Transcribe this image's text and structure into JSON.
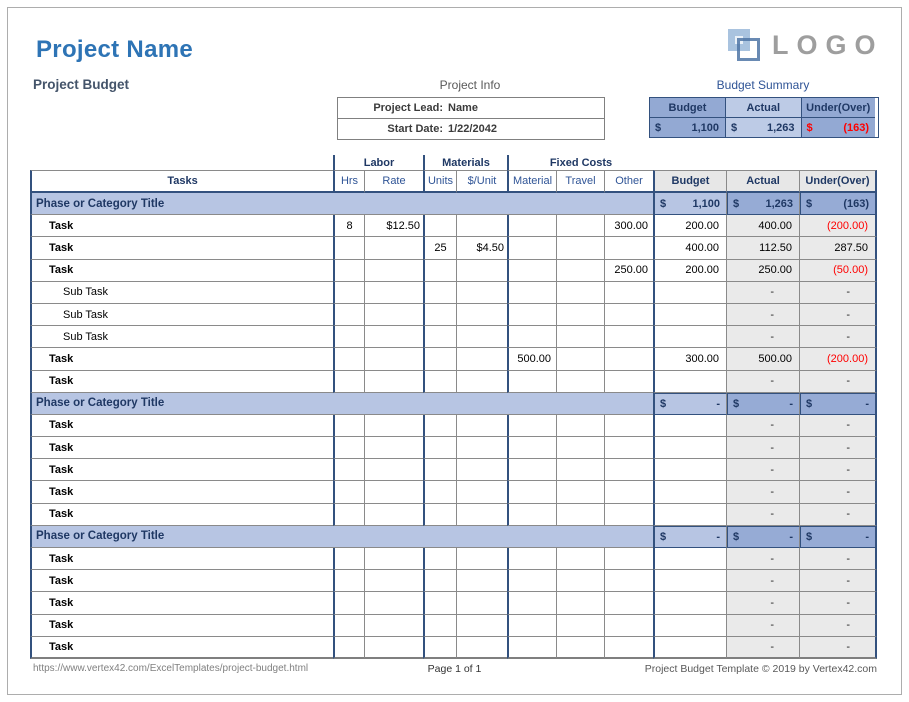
{
  "page_title": "Project Name",
  "doc_subtitle": "Project Budget",
  "logo": {
    "text": "LOGO"
  },
  "project_info": {
    "heading": "Project Info",
    "lead_label": "Project Lead:",
    "lead_value": "Name",
    "date_label": "Start Date:",
    "date_value": "1/22/2042"
  },
  "budget_summary": {
    "heading": "Budget Summary",
    "headers": {
      "budget": "Budget",
      "actual": "Actual",
      "under": "Under(Over)"
    },
    "budget_cur": "$",
    "budget_value": "1,100",
    "actual_cur": "$",
    "actual_value": "1,263",
    "under_cur": "$",
    "under_value": "(163)"
  },
  "colors": {
    "title_blue": "#2E74B5",
    "navy_text": "#1F3864",
    "header_blue": "#2F5496",
    "phase_light": "#B7C5E3",
    "phase_medium": "#96ABD5",
    "summary_medium": "#93A9D3",
    "summary_light": "#BDCBE6",
    "gray_column": "#EAEAEA",
    "negative_red": "#FF0000"
  },
  "table": {
    "groups": {
      "labor": "Labor",
      "materials": "Materials",
      "fixed": "Fixed Costs"
    },
    "headers": {
      "label": "Tasks",
      "hrs": "Hrs",
      "rate": "Rate",
      "units": "Units",
      "unit_cost": "$/Unit",
      "material": "Material",
      "travel": "Travel",
      "other": "Other",
      "budget": "Budget",
      "actual": "Actual",
      "under": "Under(Over)"
    },
    "rows": [
      {
        "type": "phase",
        "label": "Phase or Category Title",
        "budget_cur": "$",
        "budget": "1,100",
        "actual_cur": "$",
        "actual": "1,263",
        "under_cur": "$",
        "under": "(163)",
        "under_neg": true
      },
      {
        "type": "task",
        "label": "Task",
        "hrs": "8",
        "rate": "$12.50",
        "other": "300.00",
        "budget": "200.00",
        "actual": "400.00",
        "under": "(200.00)",
        "under_neg": true
      },
      {
        "type": "task",
        "label": "Task",
        "units": "25",
        "unit_cost": "$4.50",
        "budget": "400.00",
        "actual": "112.50",
        "under": "287.50"
      },
      {
        "type": "task",
        "label": "Task",
        "other": "250.00",
        "budget": "200.00",
        "actual": "250.00",
        "under": "(50.00)",
        "under_neg": true
      },
      {
        "type": "subtask",
        "label": "Sub Task",
        "actual": "-",
        "under": "-"
      },
      {
        "type": "subtask",
        "label": "Sub Task",
        "actual": "-",
        "under": "-"
      },
      {
        "type": "subtask",
        "label": "Sub Task",
        "actual": "-",
        "under": "-"
      },
      {
        "type": "task",
        "label": "Task",
        "material": "500.00",
        "budget": "300.00",
        "actual": "500.00",
        "under": "(200.00)",
        "under_neg": true
      },
      {
        "type": "task",
        "label": "Task",
        "actual": "-",
        "under": "-"
      },
      {
        "type": "phase",
        "label": "Phase or Category Title",
        "budget_cur": "$",
        "budget": "-",
        "actual_cur": "$",
        "actual": "-",
        "under_cur": "$",
        "under": "-"
      },
      {
        "type": "task",
        "label": "Task",
        "actual": "-",
        "under": "-"
      },
      {
        "type": "task",
        "label": "Task",
        "actual": "-",
        "under": "-"
      },
      {
        "type": "task",
        "label": "Task",
        "actual": "-",
        "under": "-"
      },
      {
        "type": "task",
        "label": "Task",
        "actual": "-",
        "under": "-"
      },
      {
        "type": "task",
        "label": "Task",
        "actual": "-",
        "under": "-"
      },
      {
        "type": "phase",
        "label": "Phase or Category Title",
        "budget_cur": "$",
        "budget": "-",
        "actual_cur": "$",
        "actual": "-",
        "under_cur": "$",
        "under": "-"
      },
      {
        "type": "task",
        "label": "Task",
        "actual": "-",
        "under": "-"
      },
      {
        "type": "task",
        "label": "Task",
        "actual": "-",
        "under": "-"
      },
      {
        "type": "task",
        "label": "Task",
        "actual": "-",
        "under": "-"
      },
      {
        "type": "task",
        "label": "Task",
        "actual": "-",
        "under": "-"
      },
      {
        "type": "task",
        "label": "Task",
        "actual": "-",
        "under": "-"
      }
    ]
  },
  "footer": {
    "url": "https://www.vertex42.com/ExcelTemplates/project-budget.html",
    "page": "Page 1 of 1",
    "credit": "Project Budget Template © 2019 by Vertex42.com"
  }
}
